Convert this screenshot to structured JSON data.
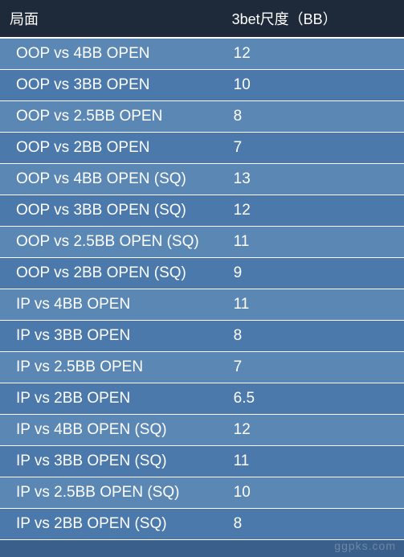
{
  "table": {
    "type": "table",
    "background_color": "#3a5f8a",
    "header_bg": "#1e2a3a",
    "row_colors": [
      "#5b87b4",
      "#4b79ab"
    ],
    "border_color": "#ffffff",
    "text_color": "#ffffff",
    "header_fontsize": 18,
    "cell_fontsize": 19,
    "columns": [
      "局面",
      "3bet尺度（BB）"
    ],
    "col_widths_pct": [
      55,
      45
    ],
    "rows": [
      [
        "OOP vs 4BB OPEN",
        "12"
      ],
      [
        "OOP vs 3BB OPEN",
        "10"
      ],
      [
        "OOP vs  2.5BB OPEN",
        "8"
      ],
      [
        "OOP vs 2BB OPEN",
        "7"
      ],
      [
        "OOP vs 4BB OPEN (SQ)",
        "13"
      ],
      [
        "OOP vs 3BB OPEN (SQ)",
        "12"
      ],
      [
        "OOP vs 2.5BB OPEN (SQ)",
        "11"
      ],
      [
        "OOP vs 2BB OPEN (SQ)",
        "9"
      ],
      [
        "IP vs 4BB OPEN",
        "11"
      ],
      [
        "IP vs 3BB OPEN",
        "8"
      ],
      [
        "IP vs 2.5BB OPEN",
        "7"
      ],
      [
        "IP vs 2BB OPEN",
        "6.5"
      ],
      [
        "IP vs 4BB OPEN (SQ)",
        "12"
      ],
      [
        "IP vs 3BB OPEN (SQ)",
        "11"
      ],
      [
        "IP vs 2.5BB OPEN (SQ)",
        "10"
      ],
      [
        "IP vs 2BB OPEN (SQ)",
        "8"
      ]
    ]
  },
  "watermark": "ggpks.com"
}
